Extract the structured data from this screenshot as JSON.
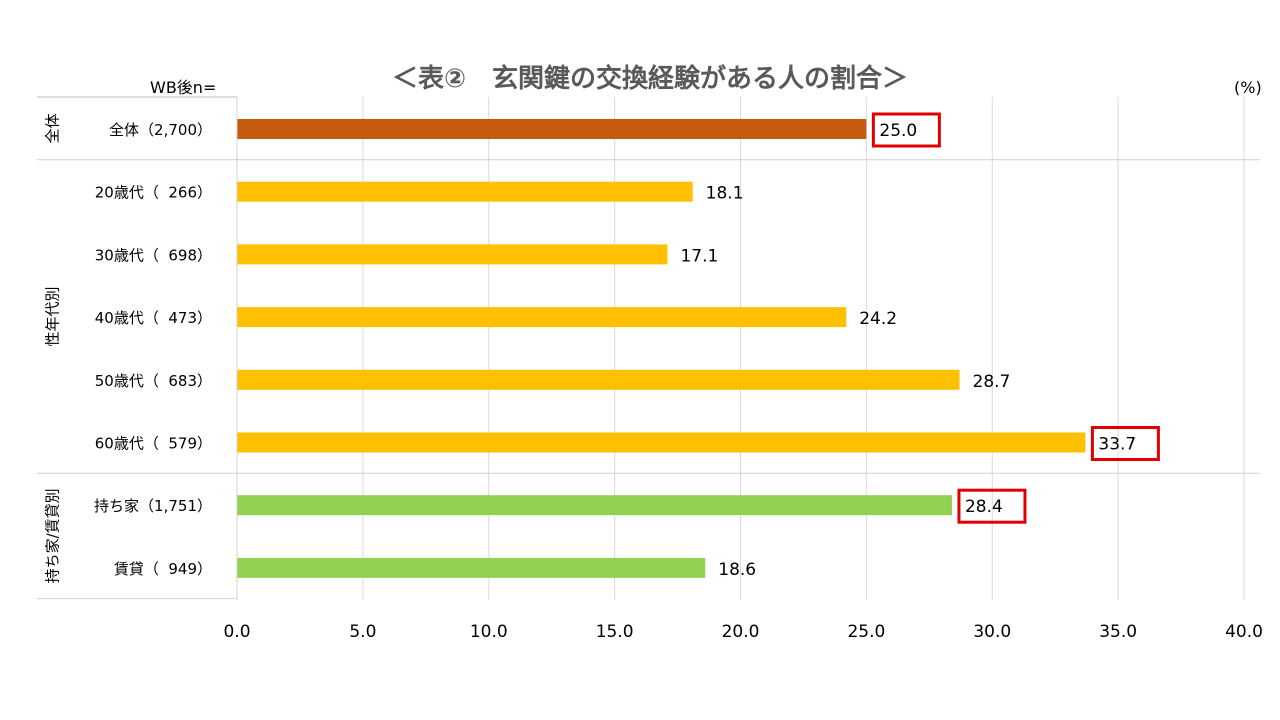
{
  "chart_data": {
    "type": "bar",
    "orientation": "horizontal",
    "title": "＜表②　玄関鍵の交換経験がある人の割合＞",
    "n_label": "WB後n=",
    "unit_label": "(%)",
    "xlim": [
      0,
      40
    ],
    "xticks": [
      "0.0",
      "5.0",
      "10.0",
      "15.0",
      "20.0",
      "25.0",
      "30.0",
      "35.0",
      "40.0"
    ],
    "grid": true,
    "groups": [
      {
        "label": "全体",
        "color": "#C55A11",
        "items": [
          {
            "category": "全体（2,700）",
            "value": 25.0,
            "label": "25.0",
            "highlight": true
          }
        ]
      },
      {
        "label": "性年代別",
        "color": "#FFC000",
        "items": [
          {
            "category": "20歳代（  266）",
            "value": 18.1,
            "label": "18.1",
            "highlight": false
          },
          {
            "category": "30歳代（  698）",
            "value": 17.1,
            "label": "17.1",
            "highlight": false
          },
          {
            "category": "40歳代（  473）",
            "value": 24.2,
            "label": "24.2",
            "highlight": false
          },
          {
            "category": "50歳代（  683）",
            "value": 28.7,
            "label": "28.7",
            "highlight": false
          },
          {
            "category": "60歳代（  579）",
            "value": 33.7,
            "label": "33.7",
            "highlight": true
          }
        ]
      },
      {
        "label": "持ち家/賃貸別",
        "color": "#92D050",
        "items": [
          {
            "category": "持ち家（1,751）",
            "value": 28.4,
            "label": "28.4",
            "highlight": true
          },
          {
            "category": "賃貸（  949）",
            "value": 18.6,
            "label": "18.6",
            "highlight": false
          }
        ]
      }
    ],
    "highlight_color": "#E00000"
  }
}
